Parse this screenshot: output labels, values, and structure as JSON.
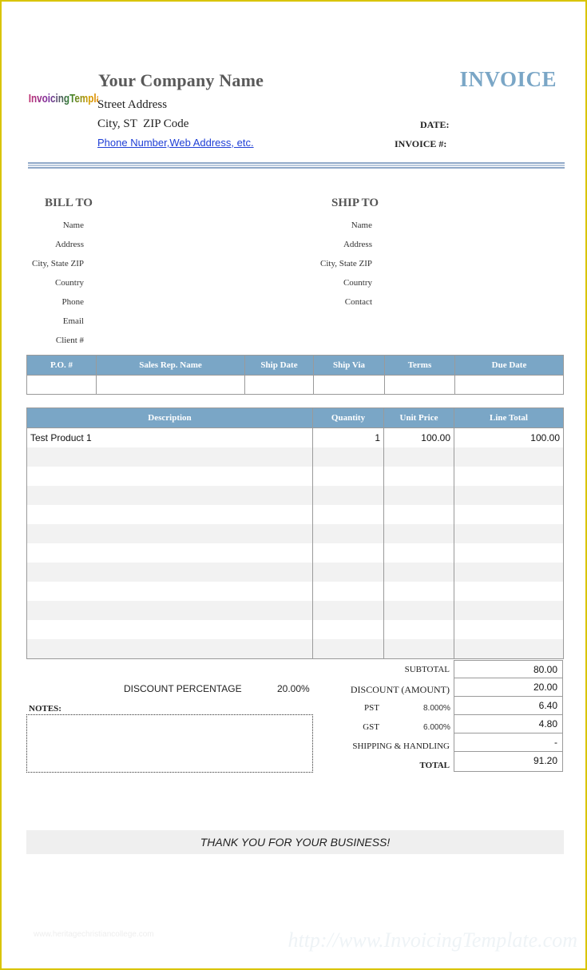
{
  "header": {
    "logo_text": "InvoicingTemplate",
    "company_name": "Your Company Name",
    "street": "Street Address",
    "city": "City, ST  ZIP Code",
    "phone_link": "Phone Number,Web Address, etc.",
    "title": "INVOICE",
    "date_label": "DATE:",
    "invoice_no_label": "INVOICE #:"
  },
  "bill_to": {
    "title": "BILL TO",
    "fields": [
      "Name",
      "Address",
      "City, State ZIP",
      "Country",
      "Phone",
      "Email",
      "Client #"
    ]
  },
  "ship_to": {
    "title": "SHIP TO",
    "fields": [
      "Name",
      "Address",
      "City, State ZIP",
      "Country",
      "Contact"
    ]
  },
  "info_table": {
    "headers": [
      "P.O. #",
      "Sales Rep. Name",
      "Ship Date",
      "Ship Via",
      "Terms",
      "Due Date"
    ]
  },
  "items_table": {
    "headers": [
      "Description",
      "Quantity",
      "Unit Price",
      "Line Total"
    ],
    "rows": [
      {
        "description": "Test Product 1",
        "quantity": "1",
        "unit_price": "100.00",
        "line_total": "100.00"
      }
    ]
  },
  "totals": {
    "subtotal_label": "SUBTOTAL",
    "subtotal": "80.00",
    "discount_pct_label": "DISCOUNT PERCENTAGE",
    "discount_pct": "20.00%",
    "discount_amount_label": "DISCOUNT (AMOUNT)",
    "discount_amount": "20.00",
    "pst_label": "PST",
    "pst_rate": "8.000%",
    "pst": "6.40",
    "gst_label": "GST",
    "gst_rate": "6.000%",
    "gst": "4.80",
    "shipping_label": "SHIPPING & HANDLING",
    "shipping": "-",
    "total_label": "TOTAL",
    "total": "91.20"
  },
  "notes_label": "NOTES:",
  "thanks": "THANK YOU FOR YOUR BUSINESS!",
  "watermark": "http://www.InvoicingTemplate.com",
  "watermark_small": "www.heritagechristiancollege.com",
  "colors": {
    "accent": "#7aa6c6",
    "page_border": "#d9c400",
    "link": "#1f3fd6"
  }
}
